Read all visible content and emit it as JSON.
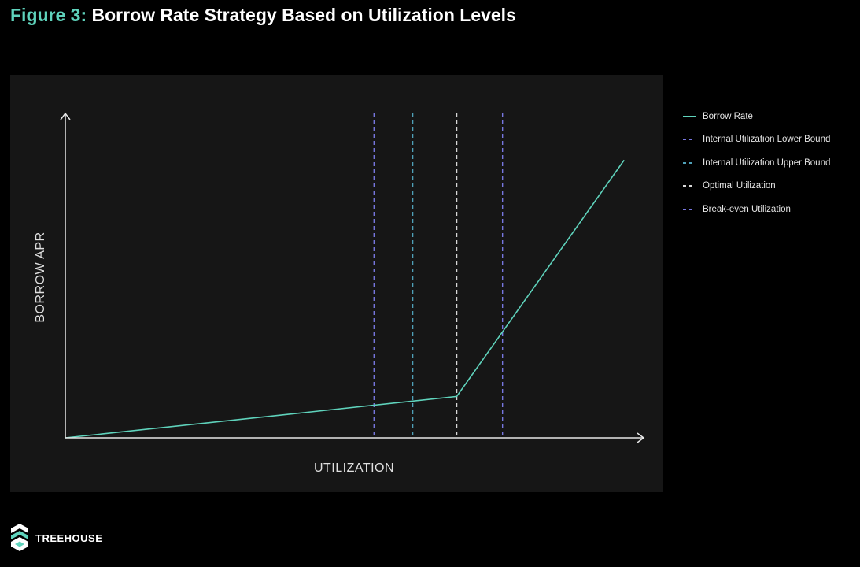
{
  "header": {
    "title_prefix": "Figure 3:",
    "title_main": "Borrow Rate Strategy Based on Utilization Levels"
  },
  "brand": {
    "name": "TREEHOUSE",
    "logo_icon": "treehouse-logo-icon",
    "accent_color": "#5fd3bc"
  },
  "chart_data": {
    "type": "line",
    "title": "Borrow Rate Strategy Based on Utilization Levels",
    "xlabel": "UTILIZATION",
    "ylabel": "BORROW APR",
    "xlim": [
      0,
      100
    ],
    "ylim": [
      0,
      100
    ],
    "axis_ticks": false,
    "grid": false,
    "legend_position": "right",
    "series": [
      {
        "name": "Borrow Rate",
        "style": "solid",
        "color": "#5fd3bc",
        "points": [
          {
            "x": 0,
            "y": 0
          },
          {
            "x": 67.6,
            "y": 12.8
          },
          {
            "x": 96.5,
            "y": 85.8
          }
        ]
      }
    ],
    "vertical_lines": [
      {
        "name": "Internal Utilization Lower Bound",
        "x": 53.3,
        "color": "#7777e0",
        "style": "dashed"
      },
      {
        "name": "Internal Utilization Upper Bound",
        "x": 60.0,
        "color": "#4fa0b8",
        "style": "dashed"
      },
      {
        "name": "Optimal Utilization",
        "x": 67.6,
        "color": "#d8d8d8",
        "style": "dashed"
      },
      {
        "name": "Break-even Utilization",
        "x": 75.5,
        "color": "#7777e0",
        "style": "dashed"
      }
    ],
    "legend": [
      {
        "label": "Borrow Rate",
        "color": "#5fd3bc",
        "style": "solid"
      },
      {
        "label": "Internal Utilization Lower Bound",
        "color": "#7777e0",
        "style": "dashed"
      },
      {
        "label": "Internal Utilization Upper Bound",
        "color": "#4fa0b8",
        "style": "dashed"
      },
      {
        "label": "Optimal Utilization",
        "color": "#d8d8d8",
        "style": "dashed"
      },
      {
        "label": "Break-even Utilization",
        "color": "#7777e0",
        "style": "dashed"
      }
    ]
  }
}
